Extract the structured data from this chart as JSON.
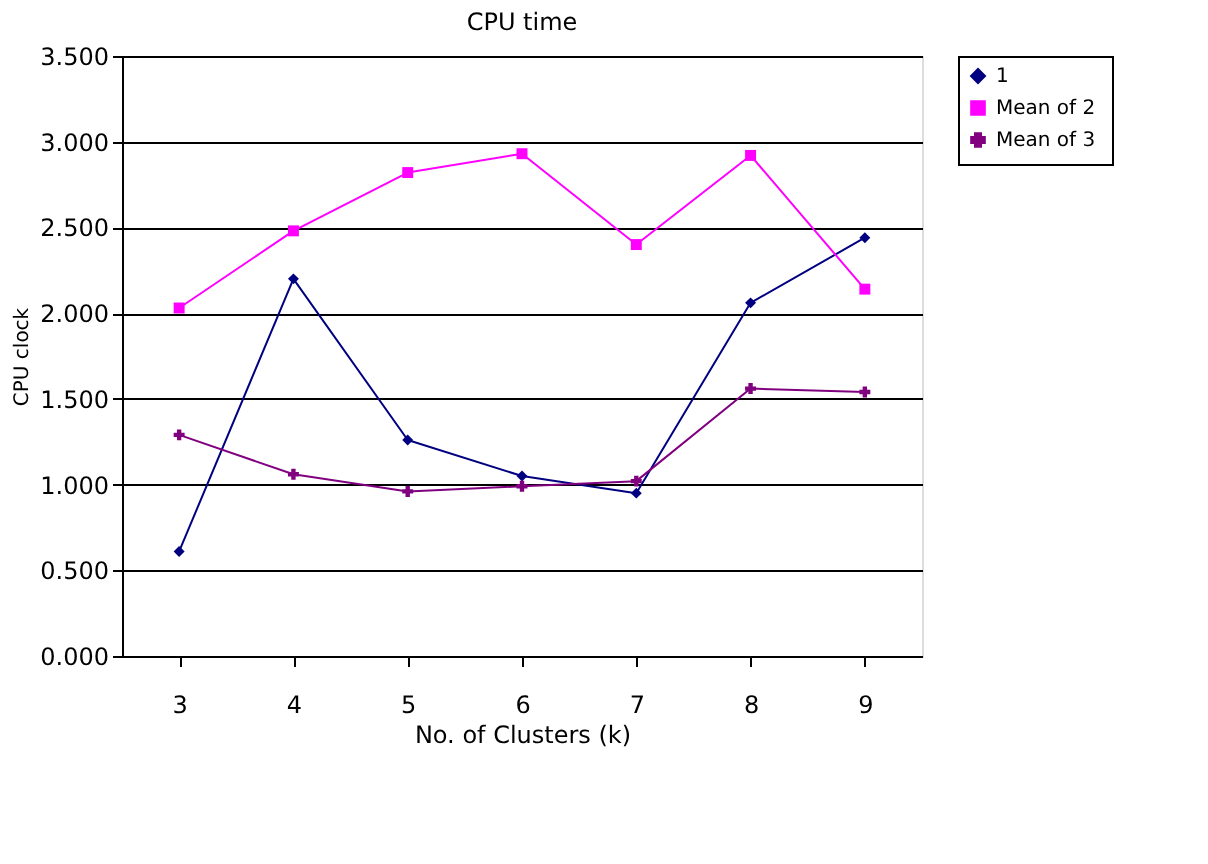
{
  "chart_data": {
    "type": "line",
    "title": "CPU time",
    "xlabel": "No. of Clusters (k)",
    "ylabel": "CPU clock",
    "categories": [
      "3",
      "4",
      "5",
      "6",
      "7",
      "8",
      "9"
    ],
    "series": [
      {
        "name": "1",
        "color": "#000080",
        "marker": "diamond",
        "values": [
          0.61,
          2.2,
          1.26,
          1.05,
          0.95,
          2.06,
          2.44
        ]
      },
      {
        "name": "Mean of  2",
        "color": "#ff00ff",
        "marker": "square",
        "values": [
          2.03,
          2.48,
          2.82,
          2.93,
          2.4,
          2.92,
          2.14
        ]
      },
      {
        "name": "Mean of  3",
        "color": "#800080",
        "marker": "cross",
        "values": [
          1.29,
          1.06,
          0.96,
          0.99,
          1.02,
          1.56,
          1.54
        ]
      }
    ],
    "ylim": [
      0,
      3.5
    ],
    "yticks": [
      {
        "value": 0,
        "label": "0.000"
      },
      {
        "value": 0.5,
        "label": "0.500"
      },
      {
        "value": 1,
        "label": "1.000"
      },
      {
        "value": 1.5,
        "label": "1.500"
      },
      {
        "value": 2,
        "label": "2.000"
      },
      {
        "value": 2.5,
        "label": "2.500"
      },
      {
        "value": 3,
        "label": "3.000"
      },
      {
        "value": 3.5,
        "label": "3.500"
      }
    ],
    "grid": "y",
    "legend": "right",
    "line_style": "solid"
  }
}
